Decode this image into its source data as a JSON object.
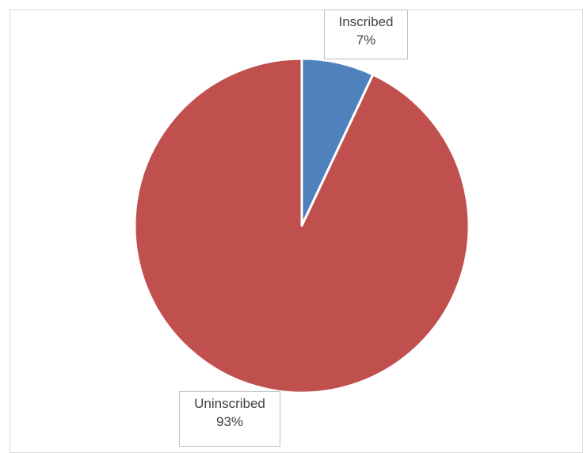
{
  "chart_data": {
    "type": "pie",
    "title": "",
    "categories": [
      "Inscribed",
      "Uninscribed"
    ],
    "values": [
      7,
      93
    ],
    "value_labels": [
      "7%",
      "93%"
    ],
    "colors": [
      "#4f81bd",
      "#c0504d"
    ],
    "slice_border_color": "#ffffff",
    "legend": "none",
    "start_angle_deg": 0,
    "direction": "clockwise"
  }
}
